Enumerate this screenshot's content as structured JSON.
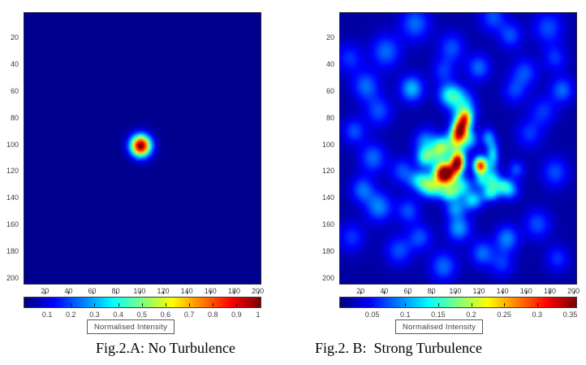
{
  "colors": {
    "page_background": "#ffffff",
    "tick_text": "#3a3a3a",
    "caption_text": "#000000",
    "colormap_low": "#000080",
    "colormap_high": "#800000"
  },
  "chart_data": [
    {
      "type": "heatmap",
      "caption": "Fig.2.A: No Turbulence",
      "colormap": "jet",
      "x_range": [
        0,
        200
      ],
      "y_range": [
        0,
        200
      ],
      "x_ticks": [
        20,
        40,
        60,
        80,
        100,
        120,
        140,
        160,
        180,
        200
      ],
      "y_ticks": [
        20,
        40,
        60,
        80,
        100,
        120,
        140,
        160,
        180,
        200
      ],
      "clim": [
        0,
        1
      ],
      "colorbar_ticks": [
        "0.1",
        "0.2",
        "0.3",
        "0.4",
        "0.5",
        "0.6",
        "0.7",
        "0.8",
        "0.9",
        "1"
      ],
      "colorbar_axis_max": 1.005,
      "colorbar_label": "Normalised Intensity",
      "background_level": 0.015,
      "peak": {
        "x": 101,
        "y": 101,
        "value": 1.0
      },
      "blobs": [
        {
          "x": 101,
          "y": 101,
          "sx": 6,
          "sy": 5.6,
          "a": 1.0
        }
      ]
    },
    {
      "type": "heatmap",
      "caption": "Fig.2. B:  Strong Turbulence",
      "colormap": "jet",
      "x_range": [
        0,
        200
      ],
      "y_range": [
        0,
        200
      ],
      "x_ticks": [
        20,
        40,
        60,
        80,
        100,
        120,
        140,
        160,
        180,
        200
      ],
      "y_ticks": [
        20,
        40,
        60,
        80,
        100,
        120,
        140,
        160,
        180,
        200
      ],
      "clim": [
        0,
        0.36
      ],
      "colorbar_ticks": [
        "0.05",
        "0.1",
        "0.15",
        "0.2",
        "0.25",
        "0.3",
        "0.35"
      ],
      "colorbar_axis_max": 0.3605,
      "colorbar_label": "Normalised Intensity",
      "background_level": 0.012,
      "peak": {
        "x": 91,
        "y": 122,
        "value": 0.36
      },
      "blobs": [
        {
          "x": 104,
          "y": 89,
          "sx": 4.5,
          "sy": 7,
          "a": 0.31,
          "rot": 20
        },
        {
          "x": 109,
          "y": 80,
          "sx": 3.5,
          "sy": 4,
          "a": 0.1
        },
        {
          "x": 102,
          "y": 114,
          "sx": 4,
          "sy": 5.5,
          "a": 0.34,
          "rot": 8
        },
        {
          "x": 91,
          "y": 122,
          "sx": 6,
          "sy": 5.5,
          "a": 0.4,
          "rot": -8
        },
        {
          "x": 121.5,
          "y": 116,
          "sx": 4,
          "sy": 4.5,
          "a": 0.29
        },
        {
          "x": 100,
          "y": 100,
          "sx": 7,
          "sy": 7,
          "a": 0.1
        },
        {
          "x": 107,
          "y": 74,
          "sx": 7,
          "sy": 9,
          "a": 0.12
        },
        {
          "x": 96,
          "y": 63,
          "sx": 7,
          "sy": 6,
          "a": 0.13
        },
        {
          "x": 112,
          "y": 96,
          "sx": 5,
          "sy": 5,
          "a": 0.09
        },
        {
          "x": 88,
          "y": 101,
          "sx": 5,
          "sy": 5,
          "a": 0.1
        },
        {
          "x": 85,
          "y": 108,
          "sx": 7,
          "sy": 6,
          "a": 0.1
        },
        {
          "x": 74,
          "y": 110,
          "sx": 5,
          "sy": 5,
          "a": 0.11
        },
        {
          "x": 71,
          "y": 127,
          "sx": 7,
          "sy": 5,
          "a": 0.12
        },
        {
          "x": 80,
          "y": 133,
          "sx": 7,
          "sy": 5,
          "a": 0.14
        },
        {
          "x": 95,
          "y": 137,
          "sx": 6,
          "sy": 4,
          "a": 0.12
        },
        {
          "x": 104,
          "y": 131,
          "sx": 7,
          "sy": 5,
          "a": 0.12
        },
        {
          "x": 115,
          "y": 142,
          "sx": 6,
          "sy": 5,
          "a": 0.11
        },
        {
          "x": 100,
          "y": 148,
          "sx": 6,
          "sy": 5,
          "a": 0.08
        },
        {
          "x": 122,
          "y": 127,
          "sx": 4,
          "sy": 4,
          "a": 0.08
        },
        {
          "x": 131,
          "y": 127,
          "sx": 5,
          "sy": 6,
          "a": 0.12
        },
        {
          "x": 132,
          "y": 108,
          "sx": 3.5,
          "sy": 7,
          "a": 0.11
        },
        {
          "x": 130,
          "y": 137,
          "sx": 5,
          "sy": 4,
          "a": 0.1
        },
        {
          "x": 128,
          "y": 95,
          "sx": 4,
          "sy": 5,
          "a": 0.08
        },
        {
          "x": 146,
          "y": 135,
          "sx": 6,
          "sy": 5,
          "a": 0.08
        },
        {
          "x": 152,
          "y": 119,
          "sx": 5,
          "sy": 5,
          "a": 0.06
        },
        {
          "x": 141,
          "y": 131,
          "sx": 5,
          "sy": 4,
          "a": 0.09
        },
        {
          "x": 66,
          "y": 9,
          "sx": 9,
          "sy": 9,
          "a": 0.07
        },
        {
          "x": 132,
          "y": 4,
          "sx": 8,
          "sy": 8,
          "a": 0.06
        },
        {
          "x": 147,
          "y": 18,
          "sx": 7,
          "sy": 7,
          "a": 0.06
        },
        {
          "x": 179,
          "y": 12,
          "sx": 9,
          "sy": 9,
          "a": 0.06
        },
        {
          "x": 41,
          "y": 30,
          "sx": 9,
          "sy": 9,
          "a": 0.07
        },
        {
          "x": 97,
          "y": 27,
          "sx": 8,
          "sy": 8,
          "a": 0.06
        },
        {
          "x": 120,
          "y": 42,
          "sx": 7,
          "sy": 7,
          "a": 0.07
        },
        {
          "x": 24,
          "y": 56,
          "sx": 8,
          "sy": 8,
          "a": 0.07
        },
        {
          "x": 63,
          "y": 58,
          "sx": 7,
          "sy": 7,
          "a": 0.1
        },
        {
          "x": 159,
          "y": 46,
          "sx": 8,
          "sy": 8,
          "a": 0.06
        },
        {
          "x": 191,
          "y": 59,
          "sx": 7,
          "sy": 7,
          "a": 0.07
        },
        {
          "x": 14,
          "y": 90,
          "sx": 7,
          "sy": 7,
          "a": 0.06
        },
        {
          "x": 30,
          "y": 110,
          "sx": 8,
          "sy": 8,
          "a": 0.07
        },
        {
          "x": 75,
          "y": 98,
          "sx": 7,
          "sy": 7,
          "a": 0.08
        },
        {
          "x": 163,
          "y": 92,
          "sx": 8,
          "sy": 8,
          "a": 0.05
        },
        {
          "x": 185,
          "y": 121,
          "sx": 8,
          "sy": 8,
          "a": 0.06
        },
        {
          "x": 21,
          "y": 134,
          "sx": 7,
          "sy": 7,
          "a": 0.07
        },
        {
          "x": 35,
          "y": 147,
          "sx": 8,
          "sy": 8,
          "a": 0.08
        },
        {
          "x": 103,
          "y": 163,
          "sx": 7,
          "sy": 7,
          "a": 0.09
        },
        {
          "x": 144,
          "y": 171,
          "sx": 7,
          "sy": 7,
          "a": 0.08
        },
        {
          "x": 123,
          "y": 182,
          "sx": 7,
          "sy": 7,
          "a": 0.07
        },
        {
          "x": 90,
          "y": 192,
          "sx": 8,
          "sy": 8,
          "a": 0.07
        },
        {
          "x": 52,
          "y": 180,
          "sx": 8,
          "sy": 8,
          "a": 0.06
        },
        {
          "x": 170,
          "y": 160,
          "sx": 8,
          "sy": 8,
          "a": 0.06
        },
        {
          "x": 187,
          "y": 186,
          "sx": 7,
          "sy": 7,
          "a": 0.05
        },
        {
          "x": 60,
          "y": 150,
          "sx": 7,
          "sy": 7,
          "a": 0.06
        },
        {
          "x": 12,
          "y": 170,
          "sx": 8,
          "sy": 8,
          "a": 0.05
        },
        {
          "x": 175,
          "y": 75,
          "sx": 8,
          "sy": 8,
          "a": 0.05
        },
        {
          "x": 150,
          "y": 60,
          "sx": 7,
          "sy": 7,
          "a": 0.05
        },
        {
          "x": 35,
          "y": 75,
          "sx": 8,
          "sy": 8,
          "a": 0.06
        },
        {
          "x": 10,
          "y": 35,
          "sx": 8,
          "sy": 8,
          "a": 0.05
        },
        {
          "x": 90,
          "y": 45,
          "sx": 7,
          "sy": 7,
          "a": 0.05
        },
        {
          "x": 55,
          "y": 120,
          "sx": 7,
          "sy": 7,
          "a": 0.06
        },
        {
          "x": 70,
          "y": 170,
          "sx": 7,
          "sy": 7,
          "a": 0.06
        },
        {
          "x": 185,
          "y": 35,
          "sx": 7,
          "sy": 7,
          "a": 0.05
        },
        {
          "x": 140,
          "y": 190,
          "sx": 7,
          "sy": 7,
          "a": 0.05
        }
      ]
    }
  ]
}
